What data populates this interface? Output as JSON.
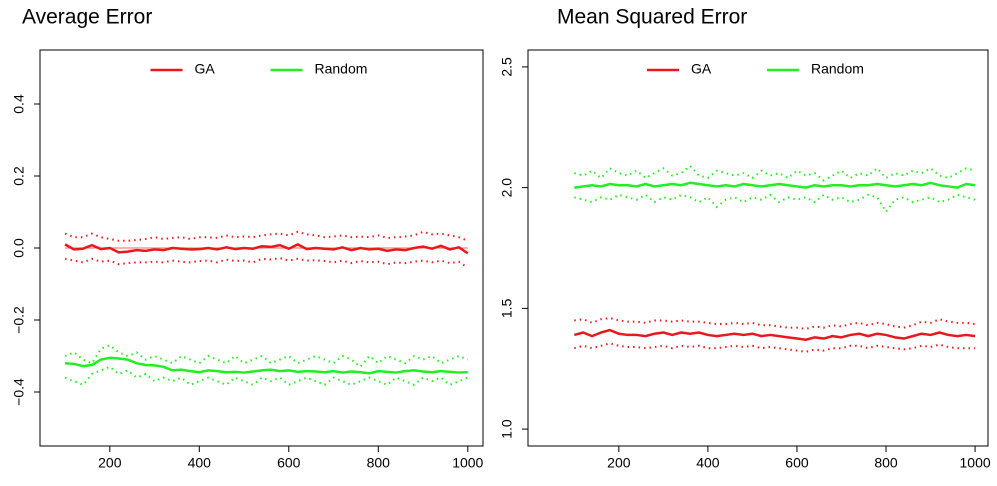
{
  "chart_data": [
    {
      "type": "line",
      "title": "Average Error",
      "legend": "top",
      "grid": false,
      "xlim": [
        44,
        1034
      ],
      "ylim": [
        -0.55,
        0.55
      ],
      "xticks": [
        200,
        400,
        600,
        800,
        1000
      ],
      "yticks": [
        {
          "value": -0.4,
          "label": "−0.4"
        },
        {
          "value": -0.2,
          "label": "−0.2"
        },
        {
          "value": 0,
          "label": "0.0"
        },
        0.2,
        0.4
      ],
      "reference_line": {
        "y": 0,
        "color": "#ff8080"
      },
      "x": [
        100,
        120,
        140,
        160,
        180,
        200,
        220,
        240,
        260,
        280,
        300,
        320,
        340,
        360,
        380,
        400,
        420,
        440,
        460,
        480,
        500,
        520,
        540,
        560,
        580,
        600,
        620,
        640,
        660,
        680,
        700,
        720,
        740,
        760,
        780,
        800,
        820,
        840,
        860,
        880,
        900,
        920,
        940,
        960,
        980,
        1000
      ],
      "series": [
        {
          "name": "GA",
          "color": "#e8191c",
          "style": "solid",
          "values": [
            0.01,
            -0.004,
            -0.002,
            0.008,
            -0.003,
            0.0,
            -0.012,
            -0.01,
            -0.006,
            -0.008,
            -0.004,
            -0.006,
            0.0,
            -0.002,
            -0.004,
            -0.003,
            0.0,
            -0.004,
            0.002,
            -0.003,
            0.0,
            -0.002,
            0.005,
            0.003,
            0.008,
            -0.002,
            0.01,
            -0.003,
            0.0,
            -0.002,
            -0.004,
            0.002,
            -0.006,
            0.0,
            -0.004,
            -0.002,
            -0.008,
            -0.004,
            -0.006,
            0.0,
            0.004,
            -0.002,
            0.006,
            -0.004,
            0.002,
            -0.015
          ]
        },
        {
          "color": "#e8191c",
          "style": "dotted",
          "values": [
            0.04,
            0.03,
            0.03,
            0.04,
            0.03,
            0.025,
            0.02,
            0.02,
            0.022,
            0.025,
            0.03,
            0.025,
            0.028,
            0.03,
            0.025,
            0.03,
            0.03,
            0.028,
            0.035,
            0.03,
            0.032,
            0.03,
            0.035,
            0.038,
            0.04,
            0.035,
            0.045,
            0.038,
            0.035,
            0.03,
            0.032,
            0.035,
            0.03,
            0.032,
            0.03,
            0.035,
            0.028,
            0.03,
            0.032,
            0.035,
            0.045,
            0.038,
            0.04,
            0.035,
            0.03,
            0.02
          ]
        },
        {
          "color": "#e8191c",
          "style": "dotted",
          "values": [
            -0.03,
            -0.035,
            -0.04,
            -0.03,
            -0.038,
            -0.035,
            -0.045,
            -0.042,
            -0.04,
            -0.04,
            -0.038,
            -0.04,
            -0.035,
            -0.038,
            -0.04,
            -0.036,
            -0.035,
            -0.04,
            -0.032,
            -0.036,
            -0.035,
            -0.04,
            -0.03,
            -0.032,
            -0.028,
            -0.035,
            -0.03,
            -0.035,
            -0.034,
            -0.036,
            -0.04,
            -0.035,
            -0.042,
            -0.036,
            -0.04,
            -0.038,
            -0.045,
            -0.04,
            -0.042,
            -0.038,
            -0.035,
            -0.04,
            -0.035,
            -0.042,
            -0.038,
            -0.055
          ]
        },
        {
          "name": "Random",
          "color": "#22ee22",
          "style": "solid",
          "values": [
            -0.32,
            -0.322,
            -0.328,
            -0.325,
            -0.31,
            -0.305,
            -0.307,
            -0.31,
            -0.32,
            -0.325,
            -0.326,
            -0.33,
            -0.34,
            -0.338,
            -0.342,
            -0.345,
            -0.34,
            -0.342,
            -0.345,
            -0.344,
            -0.346,
            -0.343,
            -0.34,
            -0.338,
            -0.342,
            -0.34,
            -0.344,
            -0.342,
            -0.343,
            -0.345,
            -0.342,
            -0.346,
            -0.343,
            -0.345,
            -0.348,
            -0.342,
            -0.344,
            -0.346,
            -0.342,
            -0.34,
            -0.343,
            -0.345,
            -0.342,
            -0.344,
            -0.346,
            -0.345
          ]
        },
        {
          "color": "#22ee22",
          "style": "dotted",
          "values": [
            -0.3,
            -0.29,
            -0.31,
            -0.32,
            -0.28,
            -0.27,
            -0.29,
            -0.3,
            -0.29,
            -0.31,
            -0.3,
            -0.31,
            -0.32,
            -0.3,
            -0.31,
            -0.32,
            -0.3,
            -0.31,
            -0.32,
            -0.3,
            -0.32,
            -0.31,
            -0.3,
            -0.32,
            -0.31,
            -0.3,
            -0.32,
            -0.31,
            -0.3,
            -0.31,
            -0.32,
            -0.3,
            -0.31,
            -0.33,
            -0.3,
            -0.32,
            -0.3,
            -0.31,
            -0.32,
            -0.3,
            -0.31,
            -0.3,
            -0.32,
            -0.31,
            -0.3,
            -0.31
          ]
        },
        {
          "color": "#22ee22",
          "style": "dotted",
          "values": [
            -0.36,
            -0.37,
            -0.38,
            -0.35,
            -0.34,
            -0.33,
            -0.35,
            -0.34,
            -0.36,
            -0.35,
            -0.37,
            -0.36,
            -0.37,
            -0.36,
            -0.38,
            -0.37,
            -0.36,
            -0.37,
            -0.38,
            -0.36,
            -0.37,
            -0.38,
            -0.36,
            -0.37,
            -0.36,
            -0.38,
            -0.37,
            -0.36,
            -0.37,
            -0.38,
            -0.36,
            -0.37,
            -0.38,
            -0.37,
            -0.36,
            -0.37,
            -0.38,
            -0.36,
            -0.37,
            -0.38,
            -0.36,
            -0.37,
            -0.36,
            -0.38,
            -0.37,
            -0.36
          ]
        }
      ]
    },
    {
      "type": "line",
      "title": "Mean Squared Error",
      "legend": "top",
      "grid": false,
      "xlim": [
        -4,
        1029
      ],
      "ylim": [
        0.93,
        2.57
      ],
      "xticks": [
        200,
        400,
        600,
        800,
        1000
      ],
      "yticks": [
        {
          "value": 1,
          "label": "1.0"
        },
        1.5,
        {
          "value": 2,
          "label": "2.0"
        },
        2.5
      ],
      "x": [
        100,
        120,
        140,
        160,
        180,
        200,
        220,
        240,
        260,
        280,
        300,
        320,
        340,
        360,
        380,
        400,
        420,
        440,
        460,
        480,
        500,
        520,
        540,
        560,
        580,
        600,
        620,
        640,
        660,
        680,
        700,
        720,
        740,
        760,
        780,
        800,
        820,
        840,
        860,
        880,
        900,
        920,
        940,
        960,
        980,
        1000
      ],
      "series": [
        {
          "name": "GA",
          "color": "#e8191c",
          "style": "solid",
          "values": [
            1.39,
            1.4,
            1.385,
            1.4,
            1.41,
            1.395,
            1.39,
            1.39,
            1.385,
            1.395,
            1.4,
            1.39,
            1.4,
            1.395,
            1.4,
            1.39,
            1.385,
            1.39,
            1.395,
            1.39,
            1.395,
            1.385,
            1.39,
            1.385,
            1.38,
            1.375,
            1.37,
            1.38,
            1.375,
            1.385,
            1.38,
            1.39,
            1.395,
            1.385,
            1.395,
            1.39,
            1.38,
            1.375,
            1.385,
            1.395,
            1.39,
            1.4,
            1.39,
            1.385,
            1.39,
            1.385
          ]
        },
        {
          "color": "#e8191c",
          "style": "dotted",
          "values": [
            1.45,
            1.455,
            1.44,
            1.455,
            1.46,
            1.45,
            1.445,
            1.445,
            1.44,
            1.45,
            1.45,
            1.445,
            1.45,
            1.445,
            1.445,
            1.44,
            1.435,
            1.435,
            1.44,
            1.435,
            1.44,
            1.43,
            1.43,
            1.425,
            1.42,
            1.42,
            1.415,
            1.425,
            1.42,
            1.43,
            1.425,
            1.435,
            1.44,
            1.43,
            1.44,
            1.435,
            1.425,
            1.42,
            1.43,
            1.445,
            1.44,
            1.455,
            1.445,
            1.44,
            1.44,
            1.435
          ]
        },
        {
          "color": "#e8191c",
          "style": "dotted",
          "values": [
            1.335,
            1.345,
            1.335,
            1.345,
            1.355,
            1.345,
            1.34,
            1.34,
            1.335,
            1.34,
            1.345,
            1.335,
            1.345,
            1.34,
            1.345,
            1.335,
            1.335,
            1.34,
            1.345,
            1.34,
            1.345,
            1.335,
            1.34,
            1.335,
            1.33,
            1.325,
            1.32,
            1.33,
            1.325,
            1.335,
            1.335,
            1.345,
            1.345,
            1.335,
            1.345,
            1.34,
            1.335,
            1.33,
            1.335,
            1.345,
            1.34,
            1.35,
            1.34,
            1.335,
            1.335,
            1.335
          ]
        },
        {
          "name": "Random",
          "color": "#22ee22",
          "style": "solid",
          "values": [
            2.0,
            2.005,
            2.01,
            2.005,
            2.015,
            2.01,
            2.01,
            2.005,
            2.015,
            2.005,
            2.01,
            2.015,
            2.01,
            2.02,
            2.015,
            2.01,
            2.005,
            2.01,
            2.005,
            2.015,
            2.01,
            2.005,
            2.01,
            2.015,
            2.01,
            2.005,
            2.0,
            2.01,
            2.005,
            2.01,
            2.01,
            2.005,
            2.01,
            2.01,
            2.015,
            2.01,
            2.005,
            2.01,
            2.015,
            2.01,
            2.02,
            2.01,
            2.005,
            2.0,
            2.015,
            2.01
          ]
        },
        {
          "color": "#22ee22",
          "style": "dotted",
          "values": [
            2.06,
            2.05,
            2.07,
            2.04,
            2.08,
            2.06,
            2.05,
            2.07,
            2.04,
            2.06,
            2.08,
            2.05,
            2.06,
            2.09,
            2.05,
            2.04,
            2.07,
            2.06,
            2.05,
            2.06,
            2.04,
            2.07,
            2.05,
            2.06,
            2.04,
            2.07,
            2.05,
            2.06,
            2.03,
            2.05,
            2.07,
            2.04,
            2.06,
            2.05,
            2.08,
            2.04,
            2.06,
            2.05,
            2.07,
            2.06,
            2.08,
            2.05,
            2.04,
            2.06,
            2.08,
            2.07
          ]
        },
        {
          "color": "#22ee22",
          "style": "dotted",
          "values": [
            1.96,
            1.95,
            1.94,
            1.96,
            1.95,
            1.97,
            1.96,
            1.95,
            1.97,
            1.94,
            1.96,
            1.95,
            1.97,
            1.96,
            1.94,
            1.96,
            1.92,
            1.95,
            1.96,
            1.94,
            1.96,
            1.95,
            1.97,
            1.94,
            1.96,
            1.95,
            1.96,
            1.94,
            1.97,
            1.95,
            1.96,
            1.94,
            1.95,
            1.97,
            1.96,
            1.9,
            1.95,
            1.96,
            1.94,
            1.95,
            1.96,
            1.94,
            1.95,
            1.97,
            1.96,
            1.95
          ]
        }
      ]
    }
  ]
}
